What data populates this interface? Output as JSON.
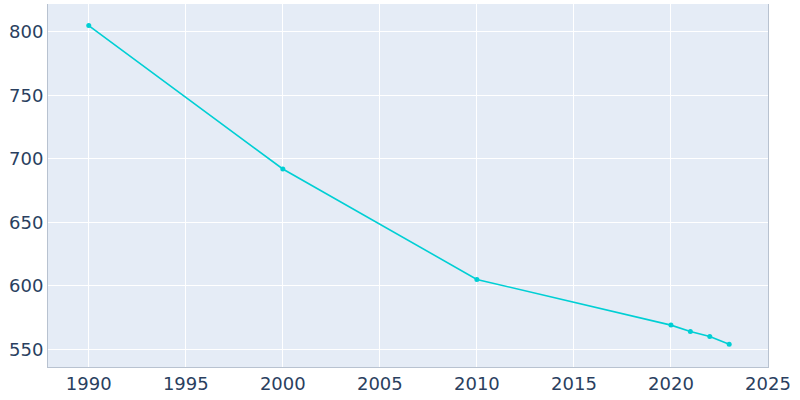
{
  "chart_data": {
    "type": "line",
    "x": [
      1990,
      2000,
      2010,
      2020,
      2021,
      2022,
      2023
    ],
    "values": [
      805,
      692,
      605,
      569,
      564,
      560,
      554
    ],
    "color": "#00cfd4",
    "marker": "circle",
    "line_style": "solid",
    "xlim": [
      1987.9,
      2025
    ],
    "xticks": [
      1990,
      1995,
      2000,
      2005,
      2010,
      2015,
      2020,
      2025
    ],
    "ylim": [
      536,
      822
    ],
    "yticks": [
      550,
      600,
      650,
      700,
      750,
      800
    ],
    "grid": true
  }
}
